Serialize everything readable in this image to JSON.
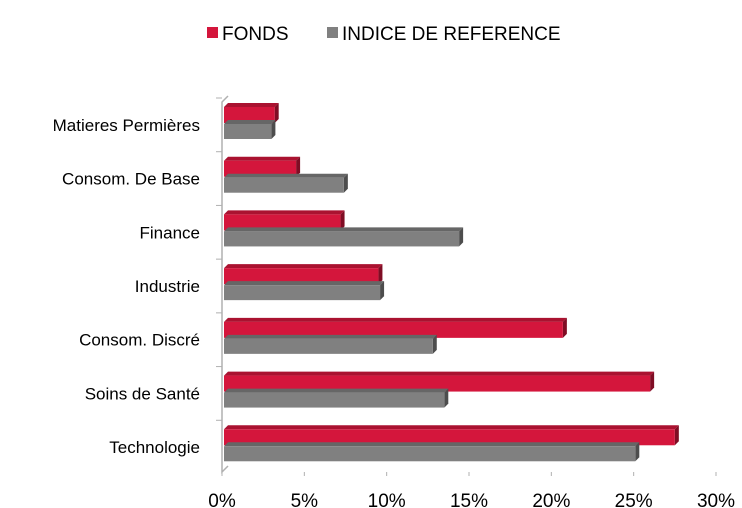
{
  "chart_data": {
    "type": "bar",
    "orientation": "horizontal",
    "categories": [
      "Matieres Permières",
      "Consom. De Base",
      "Finance",
      "Industrie",
      "Consom. Discré",
      "Soins de Santé",
      "Technologie"
    ],
    "series": [
      {
        "name": "FONDS",
        "color": "#d4163c",
        "values": [
          3.2,
          4.5,
          7.2,
          9.5,
          20.7,
          26.0,
          27.5
        ]
      },
      {
        "name": "INDICE DE REFERENCE",
        "color": "#808080",
        "values": [
          3.0,
          7.4,
          14.4,
          9.6,
          12.8,
          13.5,
          25.1
        ]
      }
    ],
    "xlim": [
      0,
      30
    ],
    "xticks": [
      {
        "value": 0,
        "label": "0%"
      },
      {
        "value": 5,
        "label": "5%"
      },
      {
        "value": 10,
        "label": "10%"
      },
      {
        "value": 15,
        "label": "15%"
      },
      {
        "value": 20,
        "label": "20%"
      },
      {
        "value": 25,
        "label": "25%"
      },
      {
        "value": 30,
        "label": "30%"
      }
    ],
    "legend": "top",
    "grid": false
  }
}
